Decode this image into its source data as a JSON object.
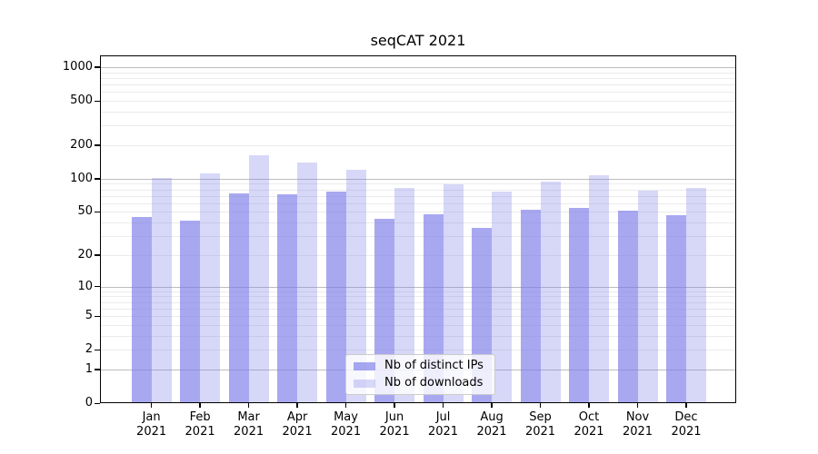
{
  "chart_data": {
    "type": "bar",
    "title": "seqCAT 2021",
    "categories": [
      "Jan",
      "Feb",
      "Mar",
      "Apr",
      "May",
      "Jun",
      "Jul",
      "Aug",
      "Sep",
      "Oct",
      "Nov",
      "Dec"
    ],
    "x_year_label": "2021",
    "series": [
      {
        "name": "Nb of distinct IPs",
        "color": "rgba(121,121,233,0.65)",
        "values": [
          45,
          42,
          73,
          72,
          76,
          43,
          48,
          36,
          52,
          54,
          51,
          47
        ]
      },
      {
        "name": "Nb of downloads",
        "color": "rgba(121,121,233,0.30)",
        "values": [
          101,
          112,
          164,
          140,
          121,
          82,
          89,
          76,
          95,
          108,
          78,
          82
        ]
      }
    ],
    "yaxis": {
      "scale": "symlog",
      "ticks": [
        1000,
        500,
        200,
        100,
        50,
        20,
        10,
        5,
        2,
        1,
        0
      ],
      "ylim": [
        0,
        1275
      ],
      "major_gridline_values": [
        1,
        10,
        100,
        1000
      ]
    },
    "grid": true,
    "legend_position": "bottom-center"
  }
}
